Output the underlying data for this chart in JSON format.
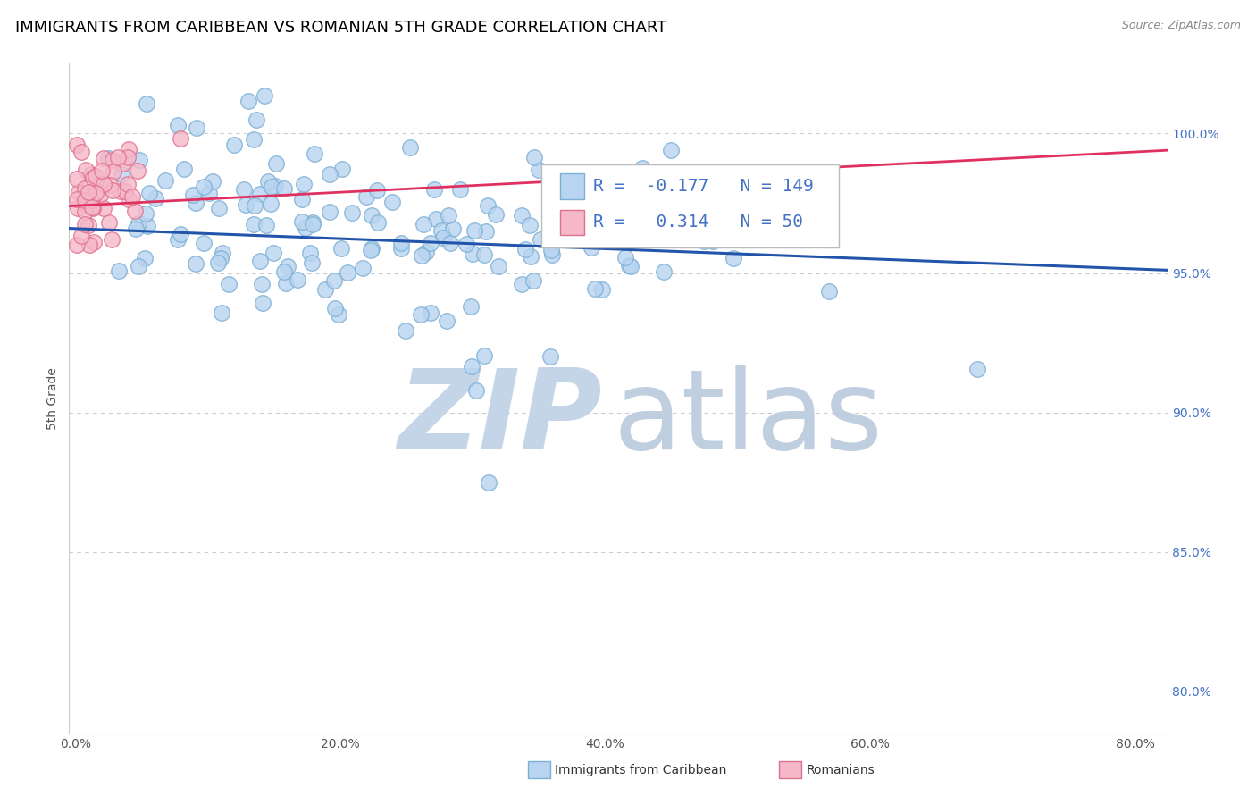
{
  "title": "IMMIGRANTS FROM CARIBBEAN VS ROMANIAN 5TH GRADE CORRELATION CHART",
  "source_text": "Source: ZipAtlas.com",
  "ylabel": "5th Grade",
  "x_tick_labels": [
    "0.0%",
    "20.0%",
    "40.0%",
    "60.0%",
    "80.0%"
  ],
  "x_tick_values": [
    0.0,
    0.2,
    0.4,
    0.6,
    0.8
  ],
  "y_tick_labels": [
    "80.0%",
    "85.0%",
    "90.0%",
    "95.0%",
    "100.0%"
  ],
  "y_tick_values": [
    0.8,
    0.85,
    0.9,
    0.95,
    1.0
  ],
  "xlim": [
    -0.005,
    0.825
  ],
  "ylim": [
    0.785,
    1.025
  ],
  "blue_R": -0.177,
  "blue_N": 149,
  "pink_R": 0.314,
  "pink_N": 50,
  "blue_color": "#b8d4f0",
  "blue_edge_color": "#7bafd4",
  "pink_color": "#f5b8c8",
  "pink_edge_color": "#e07090",
  "blue_line_color": "#2255aa",
  "pink_line_color": "#e03060",
  "grid_color": "#cccccc",
  "watermark_zip_color": "#c5d5e8",
  "watermark_atlas_color": "#c0cfe0",
  "legend_color": "#4472c4",
  "title_fontsize": 13,
  "axis_label_fontsize": 10,
  "tick_fontsize": 10,
  "legend_fontsize": 14,
  "blue_seed": 42,
  "pink_seed": 7,
  "blue_trend_y0": 0.966,
  "blue_trend_y1": 0.951,
  "pink_trend_y0": 0.974,
  "pink_trend_y1": 0.994
}
